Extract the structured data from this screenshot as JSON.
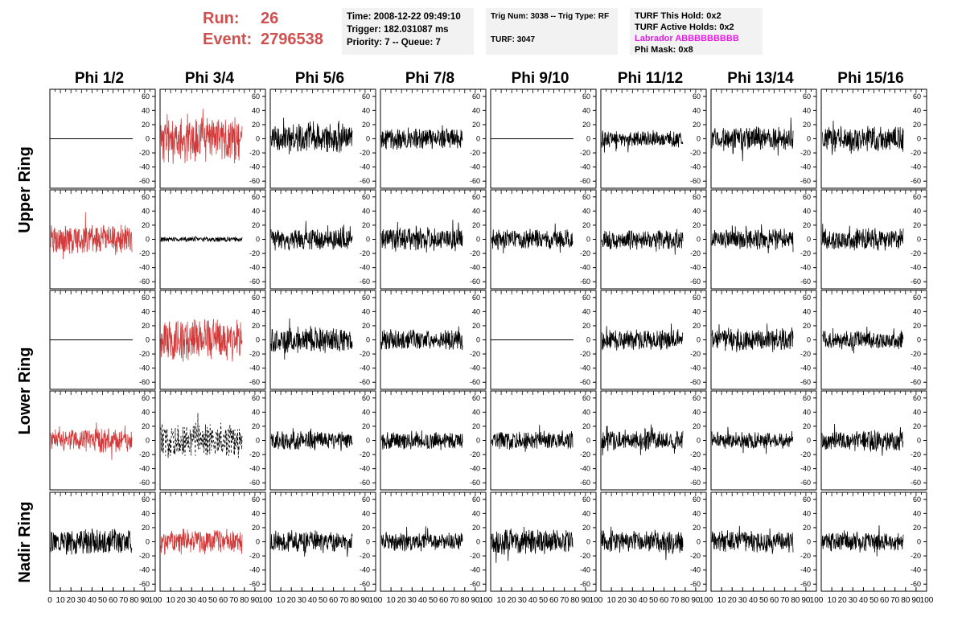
{
  "header": {
    "run_label": "Run:",
    "run_value": "26",
    "event_label": "Event:",
    "event_value": "2796538",
    "time": "Time: 2008-12-22 09:49:10",
    "trigger": "Trigger: 182.031087 ms",
    "priority": "Priority: 7 -- Queue: 7",
    "trig_num": "Trig Num: 3038 -- Trig Type: RF",
    "turf": "TURF: 3047",
    "turf_this_hold": "TURF This Hold: 0x2",
    "turf_active_holds": "TURF Active Holds: 0x2",
    "labrador": "Labrador ABBBBBBBBB",
    "phi_mask": "Phi Mask: 0x8"
  },
  "colors": {
    "highlight": "#d03a3a",
    "trace": "#000000",
    "labrador": "#e020e0",
    "run_text": "#d05050",
    "info_bg": "#f2f2f2"
  },
  "chart_data": {
    "type": "line",
    "columns": [
      "Phi 1/2",
      "Phi 3/4",
      "Phi 5/6",
      "Phi 7/8",
      "Phi 9/10",
      "Phi 11/12",
      "Phi 13/14",
      "Phi 15/16"
    ],
    "row_groups": [
      "Upper Ring",
      "Lower Ring",
      "Nadir Ring"
    ],
    "ylim": [
      -70,
      70
    ],
    "yticks": [
      -60,
      -40,
      -20,
      0,
      20,
      40,
      60
    ],
    "xlim": [
      0,
      100
    ],
    "xticks": [
      0,
      10,
      20,
      30,
      40,
      50,
      60,
      70,
      80,
      90,
      100
    ],
    "panels": [
      [
        {
          "style": "flat"
        },
        {
          "style": "red",
          "amp": 28,
          "seed": 11
        },
        {
          "style": "black",
          "amp": 18,
          "seed": 12
        },
        {
          "style": "black",
          "amp": 13,
          "seed": 13
        },
        {
          "style": "flat"
        },
        {
          "style": "black",
          "amp": 10,
          "seed": 15
        },
        {
          "style": "black",
          "amp": 14,
          "seed": 16
        },
        {
          "style": "black",
          "amp": 15,
          "seed": 17
        }
      ],
      [
        {
          "style": "red",
          "amp": 18,
          "seed": 21
        },
        {
          "style": "black",
          "amp": 3,
          "seed": 22
        },
        {
          "style": "black",
          "amp": 13,
          "seed": 23
        },
        {
          "style": "black",
          "amp": 14,
          "seed": 24
        },
        {
          "style": "black",
          "amp": 12,
          "seed": 25
        },
        {
          "style": "black",
          "amp": 12,
          "seed": 26
        },
        {
          "style": "black",
          "amp": 12,
          "seed": 27
        },
        {
          "style": "black",
          "amp": 13,
          "seed": 28
        }
      ],
      [
        {
          "style": "flat"
        },
        {
          "style": "red",
          "amp": 25,
          "seed": 31
        },
        {
          "style": "black",
          "amp": 15,
          "seed": 32
        },
        {
          "style": "black",
          "amp": 12,
          "seed": 33
        },
        {
          "style": "flat"
        },
        {
          "style": "black",
          "amp": 12,
          "seed": 35
        },
        {
          "style": "black",
          "amp": 14,
          "seed": 36
        },
        {
          "style": "black",
          "amp": 11,
          "seed": 37
        }
      ],
      [
        {
          "style": "red",
          "amp": 14,
          "seed": 41
        },
        {
          "style": "dashed",
          "amp": 20,
          "seed": 42
        },
        {
          "style": "black",
          "amp": 11,
          "seed": 43
        },
        {
          "style": "black",
          "amp": 11,
          "seed": 44
        },
        {
          "style": "black",
          "amp": 11,
          "seed": 45
        },
        {
          "style": "black",
          "amp": 12,
          "seed": 46
        },
        {
          "style": "black",
          "amp": 10,
          "seed": 47
        },
        {
          "style": "black",
          "amp": 13,
          "seed": 48
        }
      ],
      [
        {
          "style": "black",
          "amp": 15,
          "seed": 51
        },
        {
          "style": "red",
          "amp": 15,
          "seed": 52
        },
        {
          "style": "black",
          "amp": 12,
          "seed": 53
        },
        {
          "style": "black",
          "amp": 11,
          "seed": 54
        },
        {
          "style": "black",
          "amp": 15,
          "seed": 55
        },
        {
          "style": "black",
          "amp": 13,
          "seed": 56
        },
        {
          "style": "black",
          "amp": 13,
          "seed": 57
        },
        {
          "style": "black",
          "amp": 12,
          "seed": 58
        }
      ]
    ]
  }
}
